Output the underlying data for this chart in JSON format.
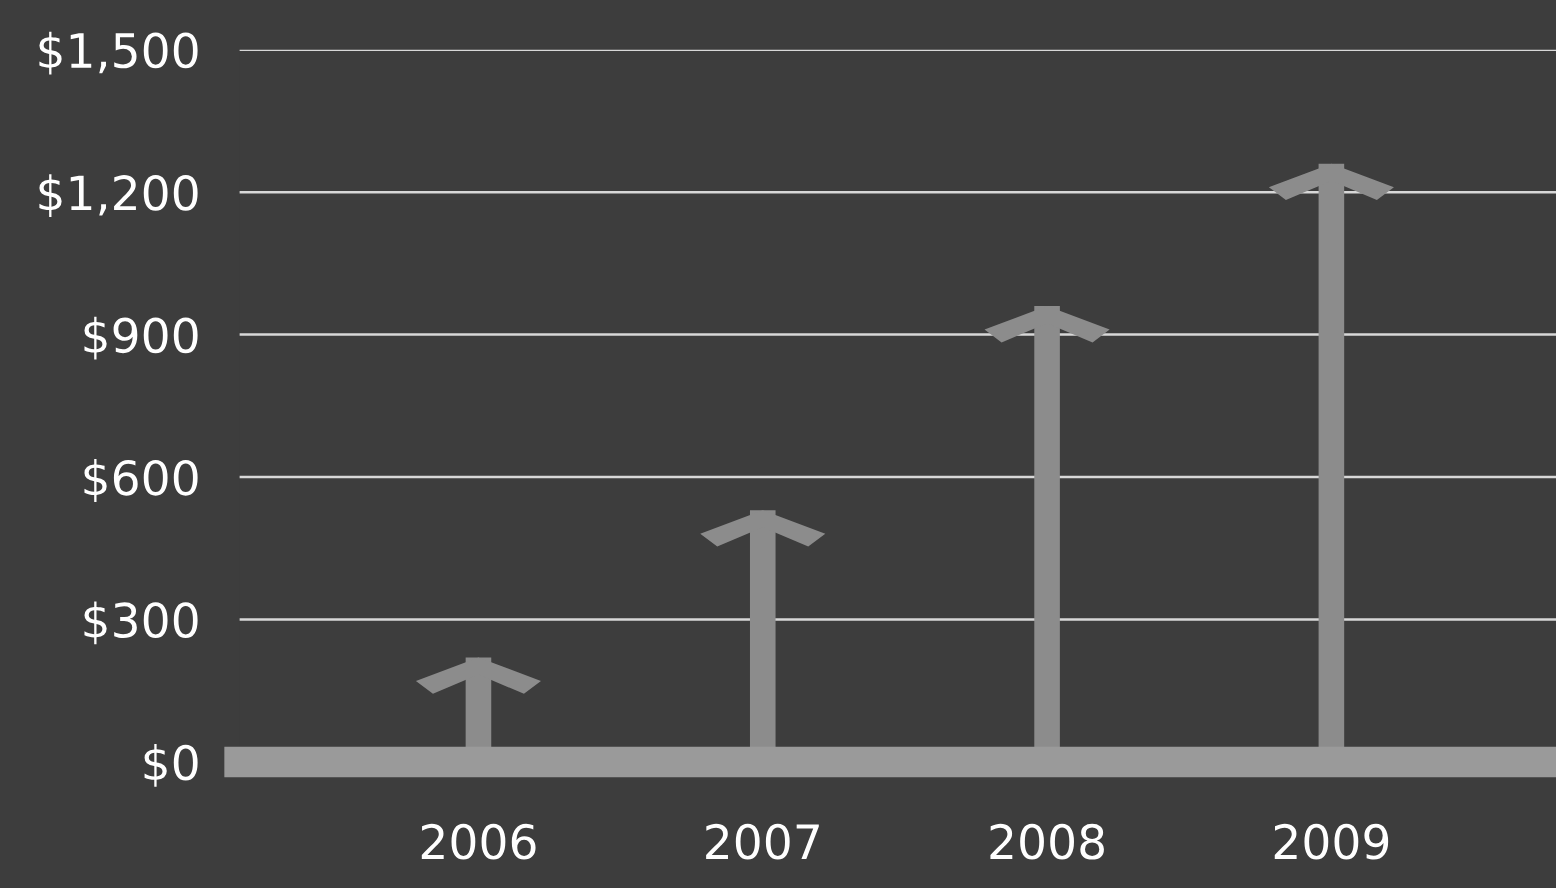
{
  "chart_data": {
    "type": "bar",
    "categories": [
      "2006",
      "2007",
      "2008",
      "2009"
    ],
    "values": [
      220,
      530,
      960,
      1260
    ],
    "color": "#8c8c8c",
    "ylim": [
      0,
      1500
    ],
    "yticks": [
      {
        "value": 0,
        "label": "$0"
      },
      {
        "value": 300,
        "label": "$300"
      },
      {
        "value": 600,
        "label": "$600"
      },
      {
        "value": 900,
        "label": "$900"
      },
      {
        "value": 1200,
        "label": "$1,200"
      },
      {
        "value": 1500,
        "label": "$1,500"
      }
    ],
    "grid": "y"
  }
}
